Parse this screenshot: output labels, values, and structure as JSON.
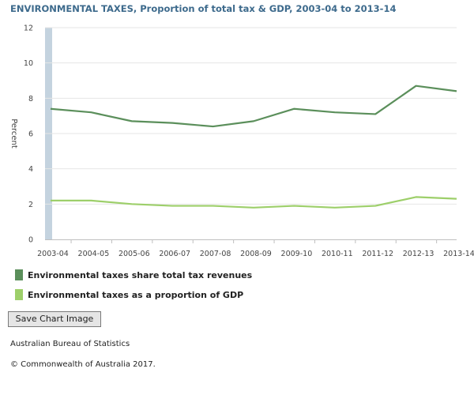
{
  "title": "ENVIRONMENTAL TAXES, Proportion of total tax & GDP, 2003-04 to 2013-14",
  "save_button_label": "Save Chart Image",
  "source": "Australian Bureau of Statistics",
  "copyright": "© Commonwealth of Australia 2017.",
  "colors": {
    "series_total_tax": "#5b8f5b",
    "series_gdp": "#9dcf6a",
    "highlight_band": "#c4d3df",
    "grid": "#e6e6e6",
    "axis": "#bfbfbf",
    "title": "#3d6a8c"
  },
  "chart_data": {
    "type": "line",
    "title": "ENVIRONMENTAL TAXES, Proportion of total tax & GDP, 2003-04 to 2013-14",
    "xlabel": "",
    "ylabel": "Percent",
    "ylim": [
      0,
      12
    ],
    "yticks": [
      "0",
      "2",
      "4",
      "6",
      "8",
      "10",
      "12"
    ],
    "grid": true,
    "legend_placement": "bottom",
    "categories": [
      "2003-04",
      "2004-05",
      "2005-06",
      "2006-07",
      "2007-08",
      "2008-09",
      "2009-10",
      "2010-11",
      "2011-12",
      "2012-13",
      "2013-14"
    ],
    "highlight_band_category": "2003-04",
    "series": [
      {
        "name": "Environmental taxes share total tax revenues",
        "color": "#5b8f5b",
        "values": [
          7.4,
          7.2,
          6.7,
          6.6,
          6.4,
          6.7,
          7.4,
          7.2,
          7.1,
          8.7,
          8.4
        ]
      },
      {
        "name": "Environmental taxes as a proportion of GDP",
        "color": "#9dcf6a",
        "values": [
          2.2,
          2.2,
          2.0,
          1.9,
          1.9,
          1.8,
          1.9,
          1.8,
          1.9,
          2.4,
          2.3
        ]
      }
    ]
  }
}
